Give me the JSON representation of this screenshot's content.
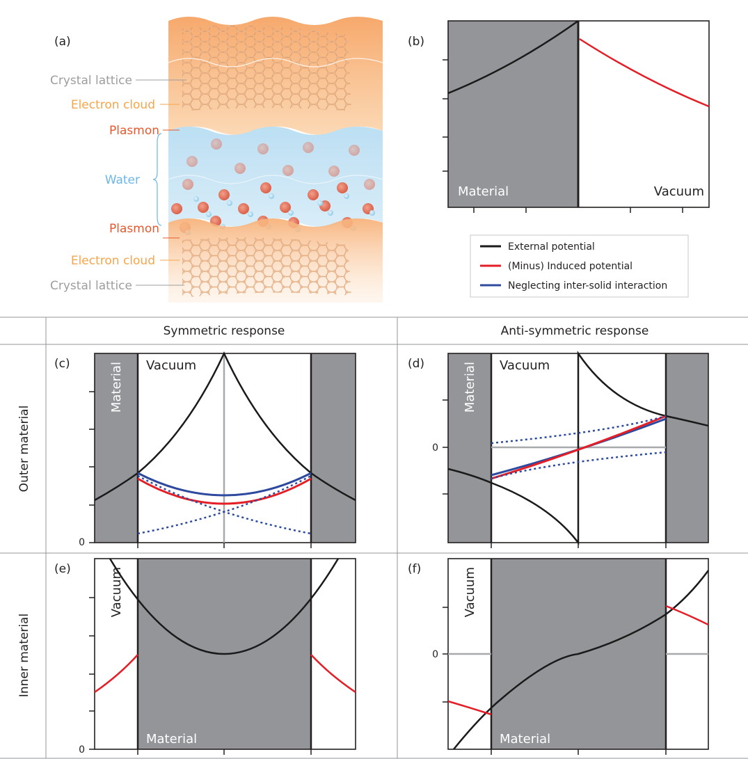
{
  "panel_a": {
    "label": "(a)",
    "layers": {
      "crystal_top": "Crystal lattice",
      "electron_top": "Electron cloud",
      "plasmon_top": "Plasmon",
      "water": "Water",
      "plasmon_bottom": "Plasmon",
      "electron_bottom": "Electron cloud",
      "crystal_bottom": "Crystal lattice"
    }
  },
  "panel_b": {
    "label": "(b)",
    "material": "Material",
    "vacuum": "Vacuum"
  },
  "legend": {
    "external": "External potential",
    "induced": "(Minus) Induced potential",
    "neglecting": "Neglecting inter-solid interaction"
  },
  "grid": {
    "col_symmetric": "Symmetric response",
    "col_antisymmetric": "Anti-symmetric response",
    "row_outer": "Outer material",
    "row_inner": "Inner material"
  },
  "panel_c": {
    "label": "(c)",
    "vacuum": "Vacuum",
    "material": "Material",
    "zero": "0"
  },
  "panel_d": {
    "label": "(d)",
    "vacuum": "Vacuum",
    "material": "Material",
    "zero": "0"
  },
  "panel_e": {
    "label": "(e)",
    "vacuum": "Vacuum",
    "material": "Material",
    "zero": "0"
  },
  "panel_f": {
    "label": "(f)",
    "vacuum": "Vacuum",
    "material": "Material",
    "zero": "0"
  },
  "colors": {
    "external": "#1a1a1a",
    "induced": "#e41e26",
    "neglecting": "#2e4a9e",
    "material": "#939598",
    "zero_line": "#a7a9ac",
    "orange_label": "#f7a54a",
    "plasmon_label": "#e8582e",
    "water_label": "#6db6e6",
    "lattice_label": "#9d9d9d"
  }
}
